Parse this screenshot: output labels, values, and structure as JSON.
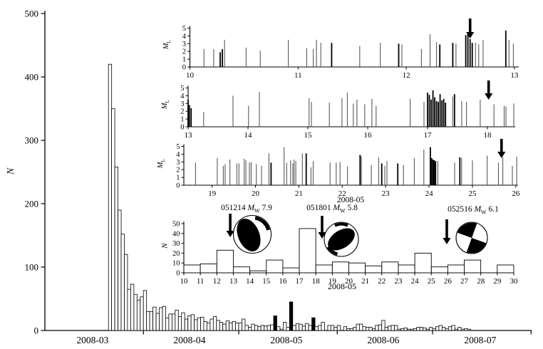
{
  "figure": {
    "background": "#ffffff",
    "ink": "#000000",
    "stem_gray": "#595959",
    "bar_fill": "#ffffff"
  },
  "labels": {
    "ml_symbol": "M",
    "ml_subscript": "L",
    "mw_symbol": "M",
    "mw_subscript": "W"
  },
  "events": [
    {
      "code": "051214",
      "magnitude": "7.9",
      "mechanism": "thrust",
      "arrow_day": 12.81
    },
    {
      "code": "051801",
      "magnitude": "5.8",
      "mechanism": "thrust",
      "arrow_day": 18.38
    },
    {
      "code": "052516",
      "magnitude": "6.1",
      "mechanism": "strike-slip",
      "arrow_day": 25.94
    }
  ],
  "chart_data": [
    {
      "id": "main-histogram",
      "type": "bar",
      "ylabel": "N",
      "ylim": [
        0,
        500
      ],
      "yticks": [
        0,
        100,
        200,
        300,
        400,
        500
      ],
      "xticklabels": [
        "2008-03",
        "2008-04",
        "2008-05",
        "2008-06",
        "2008-07"
      ],
      "start_date": "2008-03-21",
      "grid": false,
      "values": [
        420,
        350,
        258,
        190,
        152,
        120,
        65,
        73,
        57,
        48,
        53,
        63,
        30,
        30,
        37,
        27,
        36,
        38,
        20,
        26,
        26,
        32,
        22,
        28,
        18,
        23,
        25,
        17,
        20,
        21,
        14,
        12,
        18,
        22,
        16,
        13,
        10,
        15,
        12,
        14,
        12,
        12,
        18,
        8,
        5,
        10,
        8,
        6,
        8,
        7,
        8,
        9,
        23,
        6,
        2,
        13,
        5,
        45,
        8,
        11,
        10,
        7,
        11,
        8,
        20,
        6,
        8,
        13,
        0,
        8,
        8,
        5,
        8,
        0,
        6,
        3,
        3,
        5,
        10,
        10,
        6,
        5,
        5,
        3,
        8,
        9,
        16,
        5,
        7,
        8,
        8,
        2,
        3,
        4,
        2,
        2,
        3,
        5,
        5,
        4,
        2,
        5,
        3,
        6,
        8,
        5,
        3,
        6,
        8,
        2,
        5,
        2,
        3,
        2
      ],
      "black_bar_indices": [
        52,
        57,
        64
      ]
    },
    {
      "id": "ml-panel-1",
      "type": "stem",
      "ylim": [
        0,
        5
      ],
      "yticks": [
        0,
        1,
        2,
        3,
        4,
        5
      ],
      "xlim": [
        10,
        13
      ],
      "xticks": [
        10,
        11,
        12,
        13
      ],
      "arrow_day": 12.59,
      "stems": [
        [
          10.13,
          2.3,
          "g"
        ],
        [
          10.22,
          2.3,
          "g"
        ],
        [
          10.28,
          1.9,
          "b"
        ],
        [
          10.3,
          2.3,
          "b"
        ],
        [
          10.32,
          3.5,
          "g"
        ],
        [
          10.52,
          2.5,
          "g"
        ],
        [
          10.65,
          2.1,
          "g"
        ],
        [
          10.91,
          3.5,
          "g"
        ],
        [
          11.08,
          2.4,
          "g"
        ],
        [
          11.14,
          2.3,
          "g"
        ],
        [
          11.17,
          3.5,
          "g"
        ],
        [
          11.21,
          3.1,
          "g"
        ],
        [
          11.31,
          3.1,
          "b"
        ],
        [
          11.57,
          2.7,
          "g"
        ],
        [
          11.76,
          3.1,
          "g"
        ],
        [
          11.93,
          3.0,
          "b"
        ],
        [
          11.96,
          2.9,
          "g"
        ],
        [
          12.14,
          2.3,
          "g"
        ],
        [
          12.22,
          4.2,
          "g"
        ],
        [
          12.28,
          3.2,
          "g"
        ],
        [
          12.31,
          2.9,
          "b"
        ],
        [
          12.43,
          3.1,
          "b"
        ],
        [
          12.46,
          3.0,
          "g"
        ],
        [
          12.55,
          4.1,
          "b"
        ],
        [
          12.57,
          4.3,
          "b"
        ],
        [
          12.59,
          3.6,
          "b"
        ],
        [
          12.61,
          3.1,
          "b"
        ],
        [
          12.64,
          3.1,
          "g"
        ],
        [
          12.67,
          2.9,
          "g"
        ],
        [
          12.71,
          3.5,
          "g"
        ],
        [
          12.92,
          4.7,
          "b"
        ],
        [
          12.95,
          3.5,
          "g"
        ],
        [
          12.99,
          3.0,
          "g"
        ]
      ]
    },
    {
      "id": "ml-panel-2",
      "type": "stem",
      "ylim": [
        0,
        5
      ],
      "yticks": [
        0,
        1,
        2,
        3,
        4,
        5
      ],
      "xlim": [
        13,
        18
      ],
      "xticks": [
        13,
        14,
        15,
        16,
        17,
        18
      ],
      "arrow_day": 18.02,
      "stems": [
        [
          13.0,
          3.5,
          "b"
        ],
        [
          13.02,
          2.8,
          "b"
        ],
        [
          13.05,
          2.4,
          "b"
        ],
        [
          13.26,
          1.9,
          "g"
        ],
        [
          13.75,
          4.0,
          "g"
        ],
        [
          14.01,
          2.7,
          "g"
        ],
        [
          14.19,
          4.5,
          "g"
        ],
        [
          15.02,
          3.7,
          "g"
        ],
        [
          15.06,
          3.2,
          "g"
        ],
        [
          15.36,
          3.1,
          "g"
        ],
        [
          15.57,
          3.7,
          "g"
        ],
        [
          15.66,
          4.4,
          "g"
        ],
        [
          15.76,
          3.0,
          "g"
        ],
        [
          15.82,
          3.5,
          "g"
        ],
        [
          15.95,
          2.9,
          "g"
        ],
        [
          16.07,
          3.6,
          "g"
        ],
        [
          16.14,
          2.7,
          "g"
        ],
        [
          16.71,
          3.6,
          "g"
        ],
        [
          16.94,
          3.2,
          "g"
        ],
        [
          17.0,
          4.4,
          "b"
        ],
        [
          17.03,
          4.1,
          "b"
        ],
        [
          17.06,
          3.5,
          "b"
        ],
        [
          17.09,
          4.7,
          "b"
        ],
        [
          17.12,
          3.8,
          "b"
        ],
        [
          17.15,
          3.3,
          "b"
        ],
        [
          17.18,
          3.2,
          "b"
        ],
        [
          17.21,
          4.2,
          "b"
        ],
        [
          17.24,
          3.4,
          "b"
        ],
        [
          17.27,
          3.6,
          "b"
        ],
        [
          17.3,
          3.1,
          "b"
        ],
        [
          17.42,
          3.9,
          "g"
        ],
        [
          17.45,
          4.2,
          "b"
        ],
        [
          17.57,
          3.3,
          "g"
        ],
        [
          17.65,
          3.2,
          "g"
        ],
        [
          17.88,
          3.5,
          "g"
        ],
        [
          18.11,
          2.9,
          "g"
        ],
        [
          18.28,
          2.7,
          "g"
        ],
        [
          18.31,
          2.6,
          "g"
        ],
        [
          18.44,
          3.0,
          "g"
        ]
      ]
    },
    {
      "id": "ml-panel-3",
      "type": "stem",
      "ylim": [
        0,
        5
      ],
      "yticks": [
        0,
        1,
        2,
        3,
        4,
        5
      ],
      "xlim": [
        19,
        26
      ],
      "xticks": [
        19,
        20,
        21,
        22,
        23,
        24,
        25,
        26
      ],
      "xlabel": "2008-05",
      "arrow_day": 25.67,
      "stems": [
        [
          18.62,
          2.9,
          "g"
        ],
        [
          19.12,
          3.5,
          "g"
        ],
        [
          19.26,
          2.5,
          "g"
        ],
        [
          19.3,
          2.7,
          "g"
        ],
        [
          19.41,
          3.3,
          "g"
        ],
        [
          19.57,
          2.8,
          "g"
        ],
        [
          19.62,
          2.8,
          "g"
        ],
        [
          19.74,
          3.4,
          "g"
        ],
        [
          19.78,
          3.2,
          "g"
        ],
        [
          19.86,
          2.9,
          "g"
        ],
        [
          19.9,
          3.0,
          "g"
        ],
        [
          20.02,
          2.7,
          "g"
        ],
        [
          20.14,
          2.5,
          "g"
        ],
        [
          20.31,
          4.1,
          "g"
        ],
        [
          20.36,
          2.9,
          "b"
        ],
        [
          20.66,
          4.9,
          "g"
        ],
        [
          20.72,
          2.9,
          "g"
        ],
        [
          20.81,
          3.2,
          "g"
        ],
        [
          20.86,
          2.8,
          "g"
        ],
        [
          20.89,
          3.3,
          "g"
        ],
        [
          20.93,
          3.1,
          "g"
        ],
        [
          21.08,
          4.1,
          "g"
        ],
        [
          21.17,
          4.1,
          "b"
        ],
        [
          21.28,
          2.3,
          "g"
        ],
        [
          21.33,
          3.1,
          "g"
        ],
        [
          21.72,
          2.9,
          "g"
        ],
        [
          21.86,
          2.9,
          "g"
        ],
        [
          21.95,
          3.0,
          "g"
        ],
        [
          22.12,
          2.4,
          "g"
        ],
        [
          22.41,
          3.9,
          "b"
        ],
        [
          22.44,
          3.7,
          "g"
        ],
        [
          22.67,
          2.6,
          "g"
        ],
        [
          22.84,
          3.6,
          "g"
        ],
        [
          22.91,
          2.8,
          "b"
        ],
        [
          22.98,
          2.5,
          "g"
        ],
        [
          23.03,
          3.1,
          "g"
        ],
        [
          23.28,
          2.8,
          "b"
        ],
        [
          23.41,
          2.6,
          "g"
        ],
        [
          23.66,
          3.5,
          "g"
        ],
        [
          23.88,
          4.6,
          "g"
        ],
        [
          24.03,
          4.9,
          "b"
        ],
        [
          24.06,
          3.5,
          "b"
        ],
        [
          24.09,
          3.3,
          "b"
        ],
        [
          24.12,
          3.2,
          "b"
        ],
        [
          24.15,
          3.1,
          "b"
        ],
        [
          24.2,
          3.1,
          "g"
        ],
        [
          24.59,
          2.9,
          "g"
        ],
        [
          24.71,
          3.6,
          "b"
        ],
        [
          24.75,
          3.5,
          "g"
        ],
        [
          25.0,
          3.2,
          "g"
        ],
        [
          25.34,
          3.8,
          "g"
        ],
        [
          25.6,
          2.9,
          "g"
        ],
        [
          25.7,
          3.6,
          "g"
        ],
        [
          25.92,
          2.5,
          "g"
        ],
        [
          26.02,
          3.7,
          "g"
        ]
      ]
    },
    {
      "id": "may-daily-histogram",
      "type": "bar",
      "ylabel": "N",
      "ylim": [
        0,
        50
      ],
      "yticks": [
        0,
        10,
        20,
        30,
        40,
        50
      ],
      "xlabel": "2008-05",
      "xticks": [
        10,
        11,
        12,
        13,
        14,
        15,
        16,
        17,
        18,
        19,
        20,
        21,
        22,
        23,
        24,
        25,
        26,
        27,
        28,
        29,
        30
      ],
      "start_day": 10,
      "values": [
        8,
        9,
        23,
        6,
        2,
        13,
        5,
        45,
        8,
        11,
        10,
        7,
        11,
        8,
        20,
        6,
        8,
        13,
        0,
        8
      ]
    }
  ]
}
